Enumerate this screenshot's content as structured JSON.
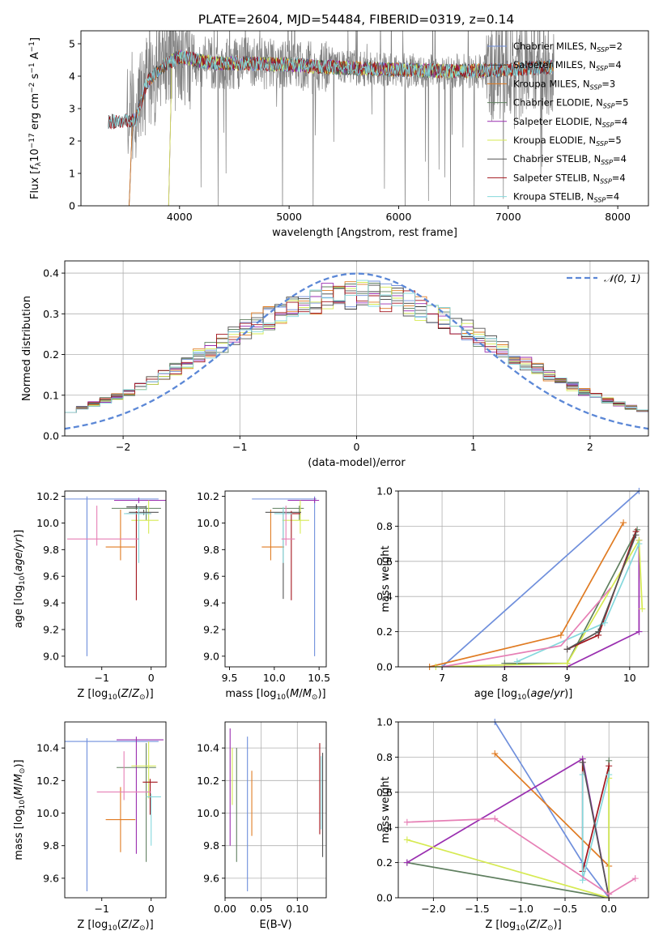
{
  "figure": {
    "title": "PLATE=2604, MJD=54484, FIBERID=0319, z=0.14"
  },
  "colors": {
    "Chabrier MILES": "#6f8fdc",
    "Salpeter MILES": "#3b3b3b",
    "Kroupa MILES": "#e07b22",
    "Chabrier ELODIE": "#5f7f5f",
    "Salpeter ELODIE": "#9a2fb0",
    "Kroupa ELODIE": "#d6ea52",
    "Chabrier STELIB": "#555555",
    "Salpeter STELIB": "#a3141c",
    "Kroupa STELIB": "#84d8dc",
    "Normal": "#5b87d6",
    "spectrum": "#808080"
  },
  "chart_data": [
    {
      "id": "spectrum",
      "type": "line",
      "title": "PLATE=2604, MJD=54484, FIBERID=0319, z=0.14",
      "xlabel": "wavelength [Angstrom, rest frame]",
      "ylabel": "Flux [f_λ10^-17 erg cm^-2 s^-1 A^-1]",
      "xlim": [
        3100,
        8280
      ],
      "ylim": [
        0,
        5.4
      ],
      "xticks": [
        4000,
        5000,
        6000,
        7000,
        8000
      ],
      "yticks": [
        0,
        1,
        2,
        3,
        4,
        5
      ],
      "legend_position": "top-right",
      "legend": [
        {
          "name": "Chabrier MILES",
          "nssp": "2"
        },
        {
          "name": "Salpeter MILES",
          "nssp": "4"
        },
        {
          "name": "Kroupa MILES",
          "nssp": "3"
        },
        {
          "name": "Chabrier ELODIE",
          "nssp": "5"
        },
        {
          "name": "Salpeter ELODIE",
          "nssp": "4"
        },
        {
          "name": "Kroupa ELODIE",
          "nssp": "5"
        },
        {
          "name": "Chabrier STELIB",
          "nssp": "4"
        },
        {
          "name": "Salpeter STELIB",
          "nssp": "4"
        },
        {
          "name": "Kroupa STELIB",
          "nssp": "4"
        }
      ],
      "continuum": {
        "x": [
          3350,
          3600,
          3700,
          3850,
          4000,
          4300,
          4600,
          5000,
          5500,
          6000,
          6500,
          7000,
          7200,
          7400
        ],
        "y": [
          2.6,
          2.65,
          3.8,
          4.3,
          4.6,
          4.4,
          4.4,
          4.35,
          4.25,
          4.2,
          4.15,
          4.2,
          4.25,
          4.3
        ]
      },
      "model_ranges": {
        "MILES": [
          3540,
          7410
        ],
        "ELODIE": [
          3900,
          6800
        ],
        "STELIB": [
          3350,
          7400
        ]
      }
    },
    {
      "id": "residuals",
      "type": "histogram",
      "xlabel": "(data-model)/error",
      "ylabel": "Normed distribution",
      "xlim": [
        -2.5,
        2.5
      ],
      "ylim": [
        0,
        0.43
      ],
      "xticks": [
        -2,
        -1,
        0,
        1,
        2
      ],
      "yticks": [
        0.0,
        0.1,
        0.2,
        0.3,
        0.4
      ],
      "grid": true,
      "legend_position": "top-right",
      "normal_label": "𝒩(0, 1)",
      "bin_edges_range": [
        -2.5,
        2.5
      ],
      "bins": 50
    },
    {
      "id": "age_vs_Z",
      "type": "errorbar",
      "xlabel": "Z [log10(Z/Z⊙)]",
      "ylabel": "age  [log10(age/yr)]",
      "xlim": [
        -1.75,
        0.3
      ],
      "ylim": [
        8.92,
        10.24
      ],
      "xticks": [
        -1,
        0
      ],
      "yticks": [
        9.0,
        9.2,
        9.4,
        9.6,
        9.8,
        10.0,
        10.2
      ],
      "points": [
        {
          "model": "Chabrier MILES",
          "x": -1.3,
          "xerr": [
            0.45,
            1.45
          ],
          "y": 10.18,
          "yerr": [
            1.18,
            0.02
          ]
        },
        {
          "model": "Salpeter MILES",
          "x": -0.3,
          "xerr": [
            0.2,
            0.2
          ],
          "y": 10.12,
          "yerr": [
            0.02,
            0.02
          ]
        },
        {
          "model": "Kroupa MILES",
          "x": -0.62,
          "xerr": [
            0.3,
            0.3
          ],
          "y": 9.82,
          "yerr": [
            0.1,
            0.28
          ]
        },
        {
          "model": "Chabrier ELODIE",
          "x": -0.1,
          "xerr": [
            0.7,
            0.3
          ],
          "y": 10.11,
          "yerr": [
            0.09,
            0.02
          ]
        },
        {
          "model": "Salpeter ELODIE",
          "x": -0.25,
          "xerr": [
            0.5,
            0.55
          ],
          "y": 10.17,
          "yerr": [
            0.02,
            0.02
          ]
        },
        {
          "model": "Kroupa ELODIE",
          "x": -0.05,
          "xerr": [
            0.35,
            0.2
          ],
          "y": 10.02,
          "yerr": [
            0.1,
            0.15
          ]
        },
        {
          "model": "Chabrier STELIB",
          "x": -0.15,
          "xerr": [
            0.3,
            0.3
          ],
          "y": 10.08,
          "yerr": [
            0.02,
            0.02
          ]
        },
        {
          "model": "Salpeter STELIB",
          "x": -0.3,
          "xerr": [
            0.2,
            0.3
          ],
          "y": 10.07,
          "yerr": [
            0.65,
            0.02
          ]
        },
        {
          "model": "Kroupa STELIB",
          "x": -0.25,
          "xerr": [
            0.3,
            0.25
          ],
          "y": 10.07,
          "yerr": [
            0.37,
            0.05
          ]
        },
        {
          "model": "Kroupa MILES (pink)",
          "x": -1.1,
          "xerr": [
            0.6,
            0.85
          ],
          "y": 9.88,
          "yerr": [
            0.05,
            0.25
          ]
        }
      ]
    },
    {
      "id": "age_vs_mass",
      "type": "errorbar",
      "xlabel": "mass [log10(M/M⊙)]",
      "ylabel": "",
      "xlim": [
        9.45,
        10.58
      ],
      "ylim": [
        8.92,
        10.24
      ],
      "xticks": [
        9.5,
        10.0,
        10.5
      ],
      "yticks": [
        9.0,
        9.2,
        9.4,
        9.6,
        9.8,
        10.0,
        10.2
      ],
      "points": [
        {
          "model": "Chabrier MILES",
          "x": 10.45,
          "xerr": [
            0.7,
            0.02
          ],
          "y": 10.18,
          "yerr": [
            1.18,
            0.02
          ]
        },
        {
          "model": "Kroupa MILES",
          "x": 9.96,
          "xerr": [
            0.1,
            0.15
          ],
          "y": 9.82,
          "yerr": [
            0.1,
            0.28
          ]
        },
        {
          "model": "Chabrier ELODIE",
          "x": 10.28,
          "xerr": [
            0.3,
            0.05
          ],
          "y": 10.11,
          "yerr": [
            0.09,
            0.02
          ]
        },
        {
          "model": "Salpeter ELODIE",
          "x": 10.45,
          "xerr": [
            0.3,
            0.05
          ],
          "y": 10.17,
          "yerr": [
            0.02,
            0.02
          ]
        },
        {
          "model": "Kroupa ELODIE",
          "x": 10.29,
          "xerr": [
            0.2,
            0.1
          ],
          "y": 10.02,
          "yerr": [
            0.1,
            0.15
          ]
        },
        {
          "model": "Chabrier STELIB",
          "x": 10.1,
          "xerr": [
            0.2,
            0.2
          ],
          "y": 10.08,
          "yerr": [
            0.65,
            0.02
          ]
        },
        {
          "model": "Salpeter STELIB",
          "x": 10.19,
          "xerr": [
            0.1,
            0.1
          ],
          "y": 10.07,
          "yerr": [
            0.65,
            0.02
          ]
        },
        {
          "model": "Kroupa STELIB",
          "x": 10.1,
          "xerr": [
            0.1,
            0.1
          ],
          "y": 10.07,
          "yerr": [
            0.37,
            0.05
          ]
        },
        {
          "model": "Kroupa MILES (pink)",
          "x": 10.13,
          "xerr": [
            0.05,
            0.1
          ],
          "y": 9.88,
          "yerr": [
            0.05,
            0.25
          ]
        }
      ]
    },
    {
      "id": "weight_vs_age",
      "type": "line",
      "xlabel": "age  [log10(age/yr)]",
      "ylabel": "mass weight",
      "xlim": [
        6.3,
        10.3
      ],
      "ylim": [
        0,
        1.0
      ],
      "xticks": [
        7,
        8,
        9,
        10
      ],
      "yticks": [
        0.0,
        0.2,
        0.4,
        0.6,
        0.8,
        1.0
      ],
      "grid": true
    },
    {
      "id": "mass_vs_Z",
      "type": "errorbar",
      "xlabel": "Z [log10(Z/Z⊙)]",
      "ylabel": "mass [log10(M/M⊙)]",
      "xlim": [
        -1.75,
        0.3
      ],
      "ylim": [
        9.48,
        10.56
      ],
      "xticks": [
        -1,
        0
      ],
      "yticks": [
        9.6,
        9.8,
        10.0,
        10.2,
        10.4
      ],
      "points": [
        {
          "model": "Chabrier MILES",
          "x": -1.3,
          "xerr": [
            0.45,
            1.45
          ],
          "y": 10.44,
          "yerr": [
            0.92,
            0.02
          ]
        },
        {
          "model": "Kroupa MILES",
          "x": -0.62,
          "xerr": [
            0.3,
            0.3
          ],
          "y": 9.96,
          "yerr": [
            0.2,
            0.2
          ]
        },
        {
          "model": "Chabrier ELODIE",
          "x": -0.1,
          "xerr": [
            0.6,
            0.2
          ],
          "y": 10.28,
          "yerr": [
            0.58,
            0.15
          ]
        },
        {
          "model": "Salpeter ELODIE",
          "x": -0.3,
          "xerr": [
            0.4,
            0.55
          ],
          "y": 10.45,
          "yerr": [
            0.7,
            0.02
          ]
        },
        {
          "model": "Kroupa ELODIE",
          "x": -0.05,
          "xerr": [
            0.35,
            0.15
          ],
          "y": 10.29,
          "yerr": [
            0.2,
            0.15
          ]
        },
        {
          "model": "Salpeter STELIB",
          "x": -0.02,
          "xerr": [
            0.15,
            0.15
          ],
          "y": 10.19,
          "yerr": [
            0.2,
            0.02
          ]
        },
        {
          "model": "Kroupa STELIB",
          "x": 0.0,
          "xerr": [
            0.1,
            0.2
          ],
          "y": 10.1,
          "yerr": [
            0.3,
            0.02
          ]
        },
        {
          "model": "Kroupa MILES (pink)",
          "x": -0.55,
          "xerr": [
            0.55,
            0.55
          ],
          "y": 10.13,
          "yerr": [
            0.05,
            0.25
          ]
        }
      ]
    },
    {
      "id": "mass_vs_ebv",
      "type": "errorbar",
      "xlabel": "E(B-V)",
      "ylabel": "",
      "xlim": [
        0.0,
        0.14
      ],
      "ylim": [
        9.48,
        10.56
      ],
      "xticks": [
        0.0,
        0.05,
        0.1
      ],
      "xticklabels": [
        "0.00",
        "0.05",
        "0.10"
      ],
      "yticks": [
        9.6,
        9.8,
        10.0,
        10.2,
        10.4
      ],
      "grid": true,
      "points": [
        {
          "model": "Salpeter ELODIE",
          "x": 0.007,
          "y": 10.1,
          "yerr": [
            0.3,
            0.42
          ]
        },
        {
          "model": "Kroupa ELODIE",
          "x": 0.01,
          "y": 10.2,
          "yerr": [
            0.15,
            0.2
          ]
        },
        {
          "model": "Chabrier ELODIE",
          "x": 0.016,
          "y": 10.05,
          "yerr": [
            0.35,
            0.35
          ]
        },
        {
          "model": "Chabrier MILES",
          "x": 0.031,
          "y": 9.97,
          "yerr": [
            0.45,
            0.5
          ]
        },
        {
          "model": "Kroupa MILES",
          "x": 0.037,
          "y": 10.06,
          "yerr": [
            0.2,
            0.2
          ]
        },
        {
          "model": "Salpeter STELIB",
          "x": 0.131,
          "y": 10.15,
          "yerr": [
            0.28,
            0.28
          ]
        },
        {
          "model": "Kroupa STELIB",
          "x": 0.133,
          "y": 10.1,
          "yerr": [
            0.2,
            0.25
          ]
        },
        {
          "model": "Chabrier STELIB",
          "x": 0.135,
          "y": 10.05,
          "yerr": [
            0.32,
            0.32
          ]
        }
      ]
    },
    {
      "id": "weight_vs_Z",
      "type": "line",
      "xlabel": "Z [log10(Z/Z⊙)]",
      "ylabel": "mass weight",
      "xlim": [
        -2.4,
        0.45
      ],
      "ylim": [
        0,
        1.0
      ],
      "xticks": [
        -2.0,
        -1.5,
        -1.0,
        -0.5,
        0.0
      ],
      "xticklabels": [
        "−2.0",
        "−1.5",
        "−1.0",
        "−0.5",
        "0.0"
      ],
      "yticks": [
        0.0,
        0.2,
        0.4,
        0.6,
        0.8,
        1.0
      ],
      "grid": true
    }
  ]
}
